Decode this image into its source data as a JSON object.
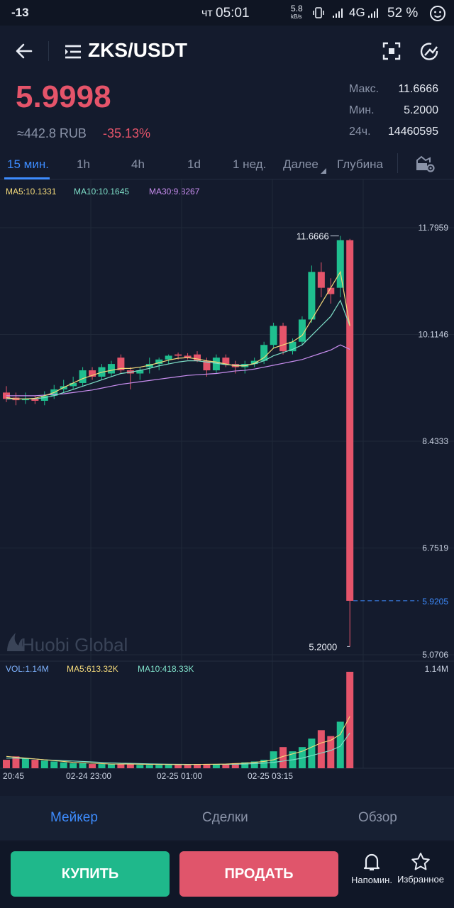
{
  "status_bar": {
    "signal_left": "-13",
    "day": "чт",
    "time": "05:01",
    "net_speed_top": "5.8",
    "net_speed_unit": "kB/s",
    "network": "4G",
    "battery": "52 %"
  },
  "header": {
    "pair": "ZKS/USDT"
  },
  "ticker": {
    "price": "5.9998",
    "rub": "≈442.8 RUB",
    "change": "-35.13%",
    "high_label": "Макс.",
    "high": "11.6666",
    "low_label": "Мин.",
    "low": "5.2000",
    "vol_label": "24ч.",
    "vol": "14460595"
  },
  "tabs": [
    "15 мин.",
    "1h",
    "4h",
    "1d",
    "1 нед.",
    "Далее",
    "Глубина"
  ],
  "ma_legend": {
    "ma5": "MA5:10.1331",
    "ma10": "MA10:10.1645",
    "ma30": "MA30:9.8267"
  },
  "colors": {
    "up": "#1fbf8f",
    "down": "#e5546a",
    "ma5": "#f3d97a",
    "ma10": "#7fe0c9",
    "ma30": "#c98ef0",
    "accent": "#3d8bfd"
  },
  "chart_data": {
    "type": "candlestick",
    "price_axis_labels": [
      "11.7959",
      "10.1146",
      "8.4333",
      "6.7519",
      "5.0706"
    ],
    "current_price_label": "5.9205",
    "high_marker": "11.6666",
    "low_marker": "5.2000",
    "watermark": "Huobi Global",
    "ylim": [
      5.0706,
      11.7959
    ],
    "candles": [
      {
        "o": 9.2,
        "h": 9.3,
        "l": 9.05,
        "c": 9.1
      },
      {
        "o": 9.12,
        "h": 9.2,
        "l": 9.0,
        "c": 9.08
      },
      {
        "o": 9.08,
        "h": 9.2,
        "l": 9.02,
        "c": 9.1
      },
      {
        "o": 9.1,
        "h": 9.15,
        "l": 9.02,
        "c": 9.07
      },
      {
        "o": 9.07,
        "h": 9.22,
        "l": 9.0,
        "c": 9.15
      },
      {
        "o": 9.15,
        "h": 9.32,
        "l": 9.1,
        "c": 9.25
      },
      {
        "o": 9.25,
        "h": 9.4,
        "l": 9.2,
        "c": 9.3
      },
      {
        "o": 9.3,
        "h": 9.45,
        "l": 9.25,
        "c": 9.35
      },
      {
        "o": 9.35,
        "h": 9.6,
        "l": 9.3,
        "c": 9.55
      },
      {
        "o": 9.55,
        "h": 9.6,
        "l": 9.4,
        "c": 9.45
      },
      {
        "o": 9.45,
        "h": 9.65,
        "l": 9.4,
        "c": 9.6
      },
      {
        "o": 9.5,
        "h": 9.7,
        "l": 9.45,
        "c": 9.65
      },
      {
        "o": 9.75,
        "h": 9.8,
        "l": 9.5,
        "c": 9.55
      },
      {
        "o": 9.55,
        "h": 9.6,
        "l": 9.25,
        "c": 9.5
      },
      {
        "o": 9.5,
        "h": 9.6,
        "l": 9.4,
        "c": 9.55
      },
      {
        "o": 9.6,
        "h": 9.75,
        "l": 9.5,
        "c": 9.65
      },
      {
        "o": 9.65,
        "h": 9.75,
        "l": 9.55,
        "c": 9.72
      },
      {
        "o": 9.72,
        "h": 9.8,
        "l": 9.65,
        "c": 9.78
      },
      {
        "o": 9.8,
        "h": 9.83,
        "l": 9.72,
        "c": 9.78
      },
      {
        "o": 9.78,
        "h": 9.82,
        "l": 9.72,
        "c": 9.75
      },
      {
        "o": 9.8,
        "h": 9.85,
        "l": 9.68,
        "c": 9.7
      },
      {
        "o": 9.7,
        "h": 9.75,
        "l": 9.45,
        "c": 9.55
      },
      {
        "o": 9.55,
        "h": 9.8,
        "l": 9.5,
        "c": 9.75
      },
      {
        "o": 9.75,
        "h": 9.8,
        "l": 9.6,
        "c": 9.65
      },
      {
        "o": 9.65,
        "h": 9.7,
        "l": 9.5,
        "c": 9.6
      },
      {
        "o": 9.6,
        "h": 9.7,
        "l": 9.5,
        "c": 9.65
      },
      {
        "o": 9.65,
        "h": 9.75,
        "l": 9.6,
        "c": 9.7
      },
      {
        "o": 9.7,
        "h": 10.0,
        "l": 9.65,
        "c": 9.95
      },
      {
        "o": 9.95,
        "h": 10.3,
        "l": 9.9,
        "c": 10.25
      },
      {
        "o": 10.25,
        "h": 10.3,
        "l": 9.8,
        "c": 9.85
      },
      {
        "o": 9.85,
        "h": 10.05,
        "l": 9.8,
        "c": 10.0
      },
      {
        "o": 10.0,
        "h": 10.4,
        "l": 9.95,
        "c": 10.35
      },
      {
        "o": 10.35,
        "h": 11.2,
        "l": 10.3,
        "c": 11.1
      },
      {
        "o": 11.1,
        "h": 11.25,
        "l": 10.7,
        "c": 10.85
      },
      {
        "o": 10.85,
        "h": 11.0,
        "l": 10.6,
        "c": 10.75
      },
      {
        "o": 10.85,
        "h": 11.6666,
        "l": 10.7,
        "c": 11.6
      },
      {
        "o": 11.6,
        "h": 11.62,
        "l": 5.2,
        "c": 5.9205
      }
    ],
    "ma5": [
      9.12,
      9.1,
      9.1,
      9.11,
      9.15,
      9.2,
      9.28,
      9.35,
      9.42,
      9.47,
      9.52,
      9.55,
      9.58,
      9.58,
      9.6,
      9.63,
      9.67,
      9.71,
      9.74,
      9.75,
      9.73,
      9.7,
      9.68,
      9.65,
      9.62,
      9.62,
      9.66,
      9.75,
      9.9,
      9.95,
      10.0,
      10.1,
      10.35,
      10.6,
      10.85,
      11.1,
      10.25
    ],
    "ma10": [
      9.1,
      9.1,
      9.1,
      9.1,
      9.12,
      9.15,
      9.2,
      9.25,
      9.3,
      9.35,
      9.4,
      9.45,
      9.5,
      9.52,
      9.55,
      9.58,
      9.62,
      9.65,
      9.68,
      9.7,
      9.7,
      9.68,
      9.66,
      9.64,
      9.63,
      9.63,
      9.65,
      9.7,
      9.78,
      9.83,
      9.88,
      9.95,
      10.1,
      10.25,
      10.4,
      10.65,
      10.25
    ],
    "ma30": [
      9.15,
      9.15,
      9.15,
      9.15,
      9.16,
      9.17,
      9.18,
      9.2,
      9.22,
      9.24,
      9.27,
      9.3,
      9.33,
      9.35,
      9.37,
      9.39,
      9.41,
      9.43,
      9.45,
      9.47,
      9.48,
      9.49,
      9.5,
      9.52,
      9.54,
      9.55,
      9.57,
      9.6,
      9.63,
      9.66,
      9.69,
      9.72,
      9.77,
      9.82,
      9.87,
      9.95,
      9.88
    ],
    "volume": {
      "labels": {
        "vol": "VOL:1.14M",
        "ma5": "MA5:613.32K",
        "ma10": "MA10:418.33K",
        "max": "1.14M"
      },
      "values": [
        0.1,
        0.14,
        0.12,
        0.1,
        0.09,
        0.08,
        0.07,
        0.06,
        0.06,
        0.05,
        0.05,
        0.05,
        0.05,
        0.05,
        0.04,
        0.04,
        0.04,
        0.04,
        0.04,
        0.04,
        0.05,
        0.05,
        0.05,
        0.05,
        0.06,
        0.07,
        0.08,
        0.1,
        0.2,
        0.25,
        0.2,
        0.25,
        0.35,
        0.45,
        0.38,
        0.55,
        1.14
      ],
      "ma5": [
        0.14,
        0.13,
        0.12,
        0.11,
        0.1,
        0.09,
        0.08,
        0.07,
        0.065,
        0.06,
        0.055,
        0.05,
        0.05,
        0.05,
        0.048,
        0.046,
        0.045,
        0.044,
        0.043,
        0.043,
        0.045,
        0.047,
        0.048,
        0.05,
        0.055,
        0.06,
        0.07,
        0.08,
        0.1,
        0.14,
        0.17,
        0.2,
        0.25,
        0.3,
        0.33,
        0.4,
        0.613
      ],
      "ma10": [
        0.12,
        0.12,
        0.115,
        0.11,
        0.1,
        0.095,
        0.09,
        0.085,
        0.08,
        0.075,
        0.07,
        0.065,
        0.06,
        0.058,
        0.055,
        0.052,
        0.05,
        0.048,
        0.047,
        0.046,
        0.046,
        0.046,
        0.046,
        0.047,
        0.048,
        0.05,
        0.055,
        0.06,
        0.07,
        0.085,
        0.1,
        0.12,
        0.15,
        0.18,
        0.21,
        0.26,
        0.418
      ]
    },
    "time_labels": [
      "20:45",
      "02-24 23:00",
      "02-25 01:00",
      "02-25 03:15"
    ]
  },
  "bottom_tabs": [
    "Мейкер",
    "Сделки",
    "Обзор"
  ],
  "actions": {
    "buy": "КУПИТЬ",
    "sell": "ПРОДАТЬ",
    "alert": "Напомин.",
    "fav": "Избранное"
  }
}
